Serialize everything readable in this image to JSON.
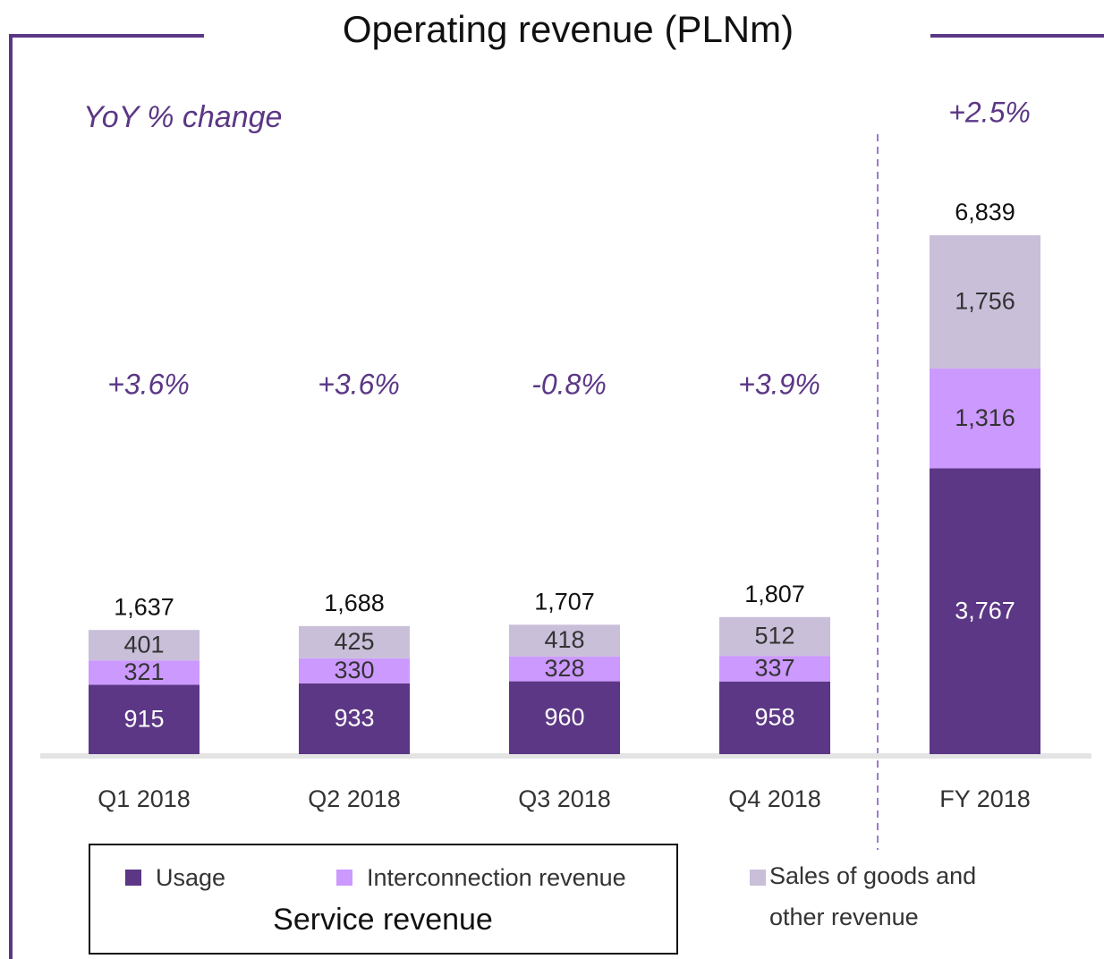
{
  "chart_data": {
    "type": "stacked_bar",
    "title": "Operating revenue (PLNm)",
    "yoy_label": "YoY % change",
    "group_label": "Service revenue",
    "categories": [
      "Q1 2018",
      "Q2 2018",
      "Q3 2018",
      "Q4 2018",
      "FY 2018"
    ],
    "yoy": [
      "+3.6%",
      "+3.6%",
      "-0.8%",
      "+3.9%",
      "+2.5%"
    ],
    "totals": [
      1637,
      1688,
      1707,
      1807,
      6839
    ],
    "totals_labels": [
      "1,637",
      "1,688",
      "1,707",
      "1,807",
      "6,839"
    ],
    "series": [
      {
        "name": "Usage",
        "color": "#5b3785",
        "values": [
          915,
          933,
          960,
          958,
          3767
        ],
        "value_labels": [
          "915",
          "933",
          "960",
          "958",
          "3,767"
        ]
      },
      {
        "name": "Interconnection revenue",
        "color": "#cc99ff",
        "values": [
          321,
          330,
          328,
          337,
          1316
        ],
        "value_labels": [
          "321",
          "330",
          "328",
          "337",
          "1,316"
        ]
      },
      {
        "name": "Sales of goods and other revenue",
        "color": "#c9bfd9",
        "values": [
          401,
          425,
          418,
          512,
          1756
        ],
        "value_labels": [
          "401",
          "425",
          "418",
          "512",
          "1,756"
        ]
      }
    ]
  }
}
